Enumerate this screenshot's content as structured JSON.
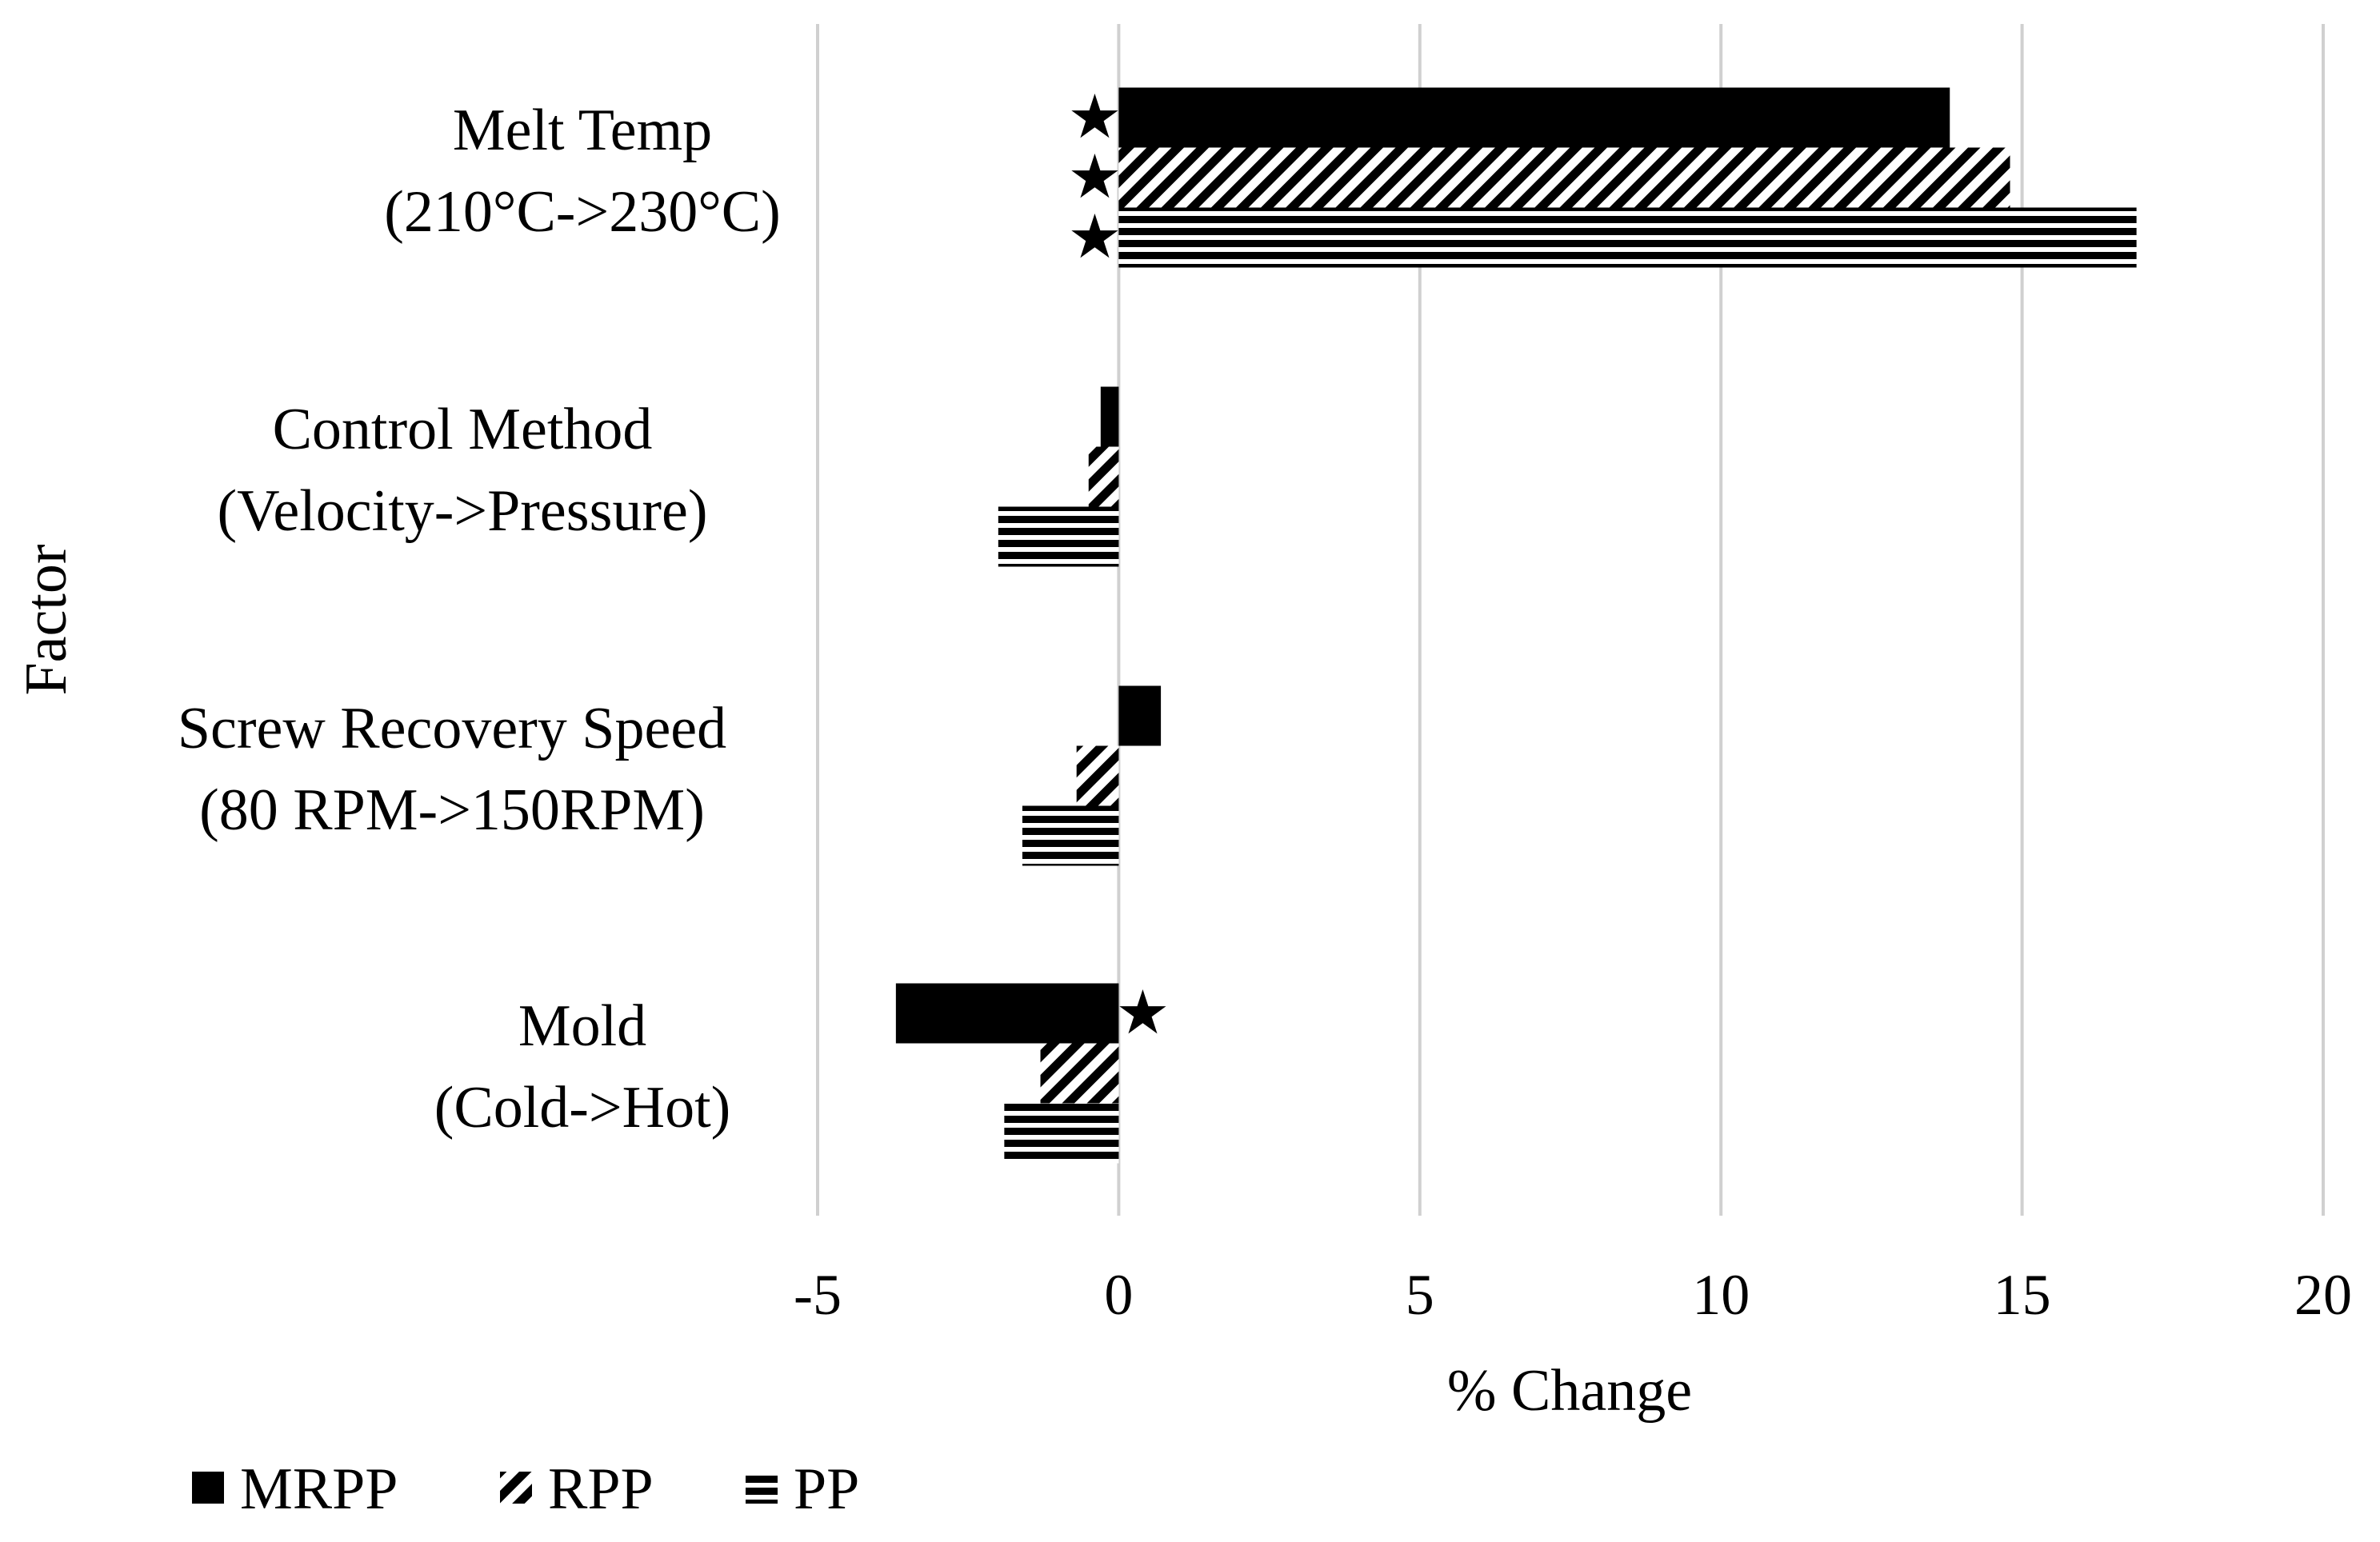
{
  "chart_data": {
    "type": "bar",
    "orientation": "horizontal",
    "title": "",
    "xlabel": "% Change",
    "ylabel": "Factor",
    "xlim": [
      -5,
      20
    ],
    "x_ticks": [
      -5,
      0,
      5,
      10,
      15,
      20
    ],
    "x_tick_labels": [
      "-5",
      "0",
      "5",
      "10",
      "15",
      "20"
    ],
    "grid": "vertical",
    "legend_position": "bottom-left",
    "categories": [
      {
        "line1": "Melt Temp",
        "line2": "(210°C->230°C)"
      },
      {
        "line1": "Control Method",
        "line2": "(Velocity->Pressure)"
      },
      {
        "line1": "Screw Recovery Speed",
        "line2": "(80 RPM->150RPM)"
      },
      {
        "line1": "Mold",
        "line2": "(Cold->Hot)"
      }
    ],
    "series": [
      {
        "name": "MRPP",
        "pattern": "solid",
        "values": [
          13.8,
          -0.3,
          0.7,
          -3.7
        ]
      },
      {
        "name": "RPP",
        "pattern": "diagonal",
        "values": [
          14.8,
          -0.5,
          -0.7,
          -1.3
        ]
      },
      {
        "name": "PP",
        "pattern": "horizontal",
        "values": [
          16.9,
          -2.0,
          -1.6,
          -1.9
        ]
      }
    ],
    "significance_markers": [
      {
        "category_index": 0,
        "series": "MRPP",
        "symbol": "★"
      },
      {
        "category_index": 0,
        "series": "RPP",
        "symbol": "★"
      },
      {
        "category_index": 0,
        "series": "PP",
        "symbol": "★"
      },
      {
        "category_index": 3,
        "series": "MRPP",
        "symbol": "★"
      }
    ]
  }
}
